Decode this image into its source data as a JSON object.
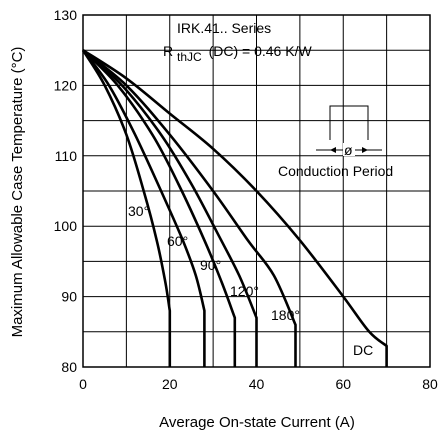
{
  "chart_data": {
    "type": "line",
    "xlabel": "Average On-state Current (A)",
    "ylabel": "Maximum Allowable Case Temperature (°C)",
    "xlim": [
      0,
      80
    ],
    "ylim": [
      80,
      130
    ],
    "x_ticks": [
      "0",
      "20",
      "40",
      "60",
      "80"
    ],
    "y_ticks": [
      "80",
      "90",
      "100",
      "110",
      "120",
      "130"
    ],
    "grid": true,
    "annotations": {
      "series_name": "IRK.41.. Series",
      "rth_prefix": "R",
      "rth_sub": "thJC",
      "rth_suffix": "(DC) = 0.46 K/W",
      "conduction_label": "Conduction Period",
      "phi": "ø"
    },
    "series": [
      {
        "name": "30°",
        "points": [
          [
            0,
            125
          ],
          [
            5,
            120
          ],
          [
            10,
            113
          ],
          [
            14,
            105
          ],
          [
            17,
            98
          ],
          [
            19,
            92
          ],
          [
            20,
            88
          ],
          [
            20,
            80
          ]
        ]
      },
      {
        "name": "60°",
        "points": [
          [
            0,
            125
          ],
          [
            6,
            120
          ],
          [
            12,
            113
          ],
          [
            18,
            105
          ],
          [
            23,
            98
          ],
          [
            26,
            93
          ],
          [
            28,
            88
          ],
          [
            28,
            80
          ]
        ]
      },
      {
        "name": "90°",
        "points": [
          [
            0,
            125
          ],
          [
            8,
            120
          ],
          [
            16,
            113
          ],
          [
            22,
            106
          ],
          [
            28,
            98
          ],
          [
            32,
            92
          ],
          [
            35,
            87
          ],
          [
            35,
            80
          ]
        ]
      },
      {
        "name": "120°",
        "points": [
          [
            0,
            125
          ],
          [
            9,
            120
          ],
          [
            18,
            113
          ],
          [
            25,
            106
          ],
          [
            31,
            99
          ],
          [
            36,
            93
          ],
          [
            40,
            87
          ],
          [
            40,
            80
          ]
        ]
      },
      {
        "name": "180°",
        "points": [
          [
            0,
            125
          ],
          [
            10,
            120
          ],
          [
            20,
            113
          ],
          [
            30,
            105
          ],
          [
            38,
            98
          ],
          [
            44,
            93
          ],
          [
            49,
            86
          ],
          [
            49,
            80
          ]
        ]
      },
      {
        "name": "DC",
        "points": [
          [
            0,
            125
          ],
          [
            10,
            121
          ],
          [
            20,
            116
          ],
          [
            30,
            111
          ],
          [
            40,
            105
          ],
          [
            50,
            98
          ],
          [
            60,
            90
          ],
          [
            66,
            85
          ],
          [
            70,
            83
          ],
          [
            70,
            80
          ]
        ]
      }
    ]
  }
}
